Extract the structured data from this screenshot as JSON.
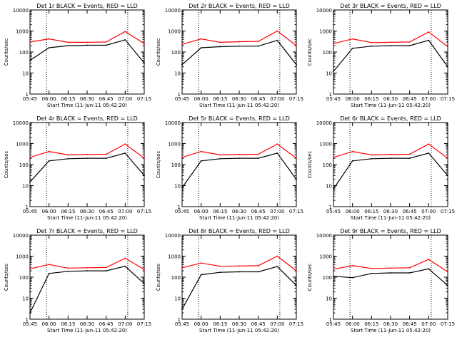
{
  "colors": {
    "events": "#000000",
    "lld": "#ff0000",
    "axis": "#000000",
    "background": "#ffffff"
  },
  "x_tick_labels": [
    "05:45",
    "06:00",
    "06:15",
    "06:30",
    "06:45",
    "07:00",
    "07:15"
  ],
  "y_tick_labels": [
    "1",
    "10",
    "100",
    "1000",
    "10000"
  ],
  "ylabel": "Counts/sec",
  "xlabel": "Start Time (11-Jun-11 05:42:20)",
  "chart_data": [
    {
      "type": "line",
      "title": "Det 1r BLACK = Events, RED = LLD",
      "ylim": [
        1,
        10000
      ],
      "yscale": "log",
      "x": [
        "05:45",
        "06:00",
        "06:15",
        "06:30",
        "06:45",
        "07:00",
        "07:15"
      ],
      "markers": [
        "05:58",
        "07:02"
      ],
      "series": [
        {
          "name": "LLD",
          "values": [
            300,
            420,
            290,
            290,
            300,
            950,
            250
          ]
        },
        {
          "name": "Events",
          "values": [
            40,
            160,
            200,
            210,
            210,
            380,
            30
          ]
        }
      ]
    },
    {
      "type": "line",
      "title": "Det 2r BLACK = Events, RED = LLD",
      "ylim": [
        1,
        10000
      ],
      "yscale": "log",
      "x": [
        "05:45",
        "06:00",
        "06:15",
        "06:30",
        "06:45",
        "07:00",
        "07:15"
      ],
      "markers": [
        "05:58",
        "07:02"
      ],
      "series": [
        {
          "name": "LLD",
          "values": [
            230,
            420,
            290,
            310,
            320,
            1000,
            200
          ]
        },
        {
          "name": "Events",
          "values": [
            25,
            160,
            180,
            190,
            190,
            360,
            25
          ]
        }
      ]
    },
    {
      "type": "line",
      "title": "Det 3r BLACK = Events, RED = LLD",
      "ylim": [
        1,
        10000
      ],
      "yscale": "log",
      "x": [
        "05:45",
        "06:00",
        "06:15",
        "06:30",
        "06:45",
        "07:00",
        "07:15"
      ],
      "markers": [
        "05:58",
        "07:02"
      ],
      "series": [
        {
          "name": "LLD",
          "values": [
            250,
            420,
            280,
            290,
            300,
            900,
            180
          ]
        },
        {
          "name": "Events",
          "values": [
            12,
            150,
            190,
            200,
            200,
            360,
            20
          ]
        }
      ]
    },
    {
      "type": "line",
      "title": "Det 4r BLACK = Events, RED = LLD",
      "ylim": [
        1,
        10000
      ],
      "yscale": "log",
      "x": [
        "05:45",
        "06:00",
        "06:15",
        "06:30",
        "06:45",
        "07:00",
        "07:15"
      ],
      "markers": [
        "05:58",
        "07:02"
      ],
      "series": [
        {
          "name": "LLD",
          "values": [
            220,
            420,
            290,
            300,
            310,
            950,
            200
          ]
        },
        {
          "name": "Events",
          "values": [
            15,
            150,
            190,
            200,
            200,
            350,
            30
          ]
        }
      ]
    },
    {
      "type": "line",
      "title": "Det 5r BLACK = Events, RED = LLD",
      "ylim": [
        1,
        10000
      ],
      "yscale": "log",
      "x": [
        "05:45",
        "06:00",
        "06:15",
        "06:30",
        "06:45",
        "07:00",
        "07:15"
      ],
      "markers": [
        "05:58",
        "07:02"
      ],
      "series": [
        {
          "name": "LLD",
          "values": [
            220,
            420,
            290,
            300,
            310,
            950,
            200
          ]
        },
        {
          "name": "Events",
          "values": [
            8,
            150,
            190,
            200,
            200,
            350,
            20
          ]
        }
      ]
    },
    {
      "type": "line",
      "title": "Det 6r BLACK = Events, RED = LLD",
      "ylim": [
        1,
        10000
      ],
      "yscale": "log",
      "x": [
        "05:45",
        "06:00",
        "06:15",
        "06:30",
        "06:45",
        "07:00",
        "07:15"
      ],
      "markers": [
        "05:58",
        "07:02"
      ],
      "series": [
        {
          "name": "LLD",
          "values": [
            220,
            420,
            290,
            300,
            310,
            950,
            200
          ]
        },
        {
          "name": "Events",
          "values": [
            7,
            150,
            190,
            200,
            200,
            350,
            30
          ]
        }
      ]
    },
    {
      "type": "line",
      "title": "Det 7r BLACK = Events, RED = LLD",
      "ylim": [
        1,
        10000
      ],
      "yscale": "log",
      "x": [
        "05:45",
        "06:00",
        "06:15",
        "06:30",
        "06:45",
        "07:00",
        "07:15"
      ],
      "markers": [
        "05:58",
        "07:02"
      ],
      "series": [
        {
          "name": "LLD",
          "values": [
            250,
            400,
            270,
            280,
            290,
            800,
            230
          ]
        },
        {
          "name": "Events",
          "values": [
            2,
            150,
            190,
            200,
            200,
            330,
            50
          ]
        }
      ]
    },
    {
      "type": "line",
      "title": "Det 8r BLACK = Events, RED = LLD",
      "ylim": [
        1,
        10000
      ],
      "yscale": "log",
      "x": [
        "05:45",
        "06:00",
        "06:15",
        "06:30",
        "06:45",
        "07:00",
        "07:15"
      ],
      "markers": [
        "05:58",
        "07:02"
      ],
      "series": [
        {
          "name": "LLD",
          "values": [
            280,
            470,
            330,
            340,
            350,
            1000,
            200
          ]
        },
        {
          "name": "Events",
          "values": [
            3,
            130,
            170,
            180,
            180,
            320,
            40
          ]
        }
      ]
    },
    {
      "type": "line",
      "title": "Det 9r BLACK = Events, RED = LLD",
      "ylim": [
        1,
        10000
      ],
      "yscale": "log",
      "x": [
        "05:45",
        "06:00",
        "06:15",
        "06:30",
        "06:45",
        "07:00",
        "07:15"
      ],
      "markers": [
        "05:58",
        "07:02"
      ],
      "series": [
        {
          "name": "LLD",
          "values": [
            240,
            350,
            260,
            270,
            280,
            700,
            180
          ]
        },
        {
          "name": "Events",
          "values": [
            110,
            95,
            150,
            160,
            160,
            250,
            40
          ]
        }
      ]
    }
  ]
}
